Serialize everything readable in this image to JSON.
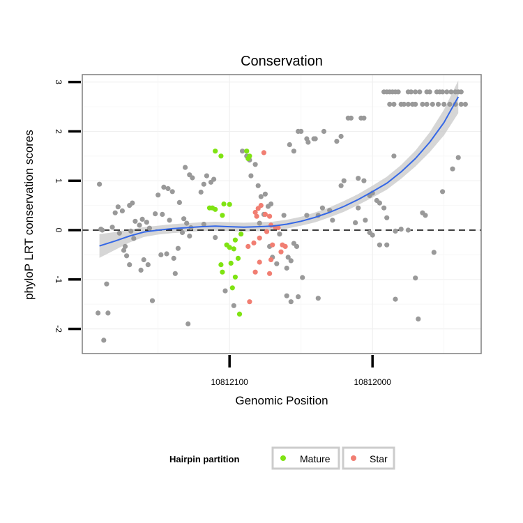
{
  "chart_data": {
    "type": "scatter",
    "title": "Conservation",
    "xlabel": "Genomic Position",
    "ylabel": "phyloP LRT conservation scores",
    "x_reversed": true,
    "xlim": [
      10812203,
      10811924
    ],
    "ylim": [
      -2.5,
      3.15
    ],
    "x_ticks": [
      {
        "value": 10812100,
        "label": "10812100"
      },
      {
        "value": 10812000,
        "label": "10812000"
      }
    ],
    "y_ticks": [
      {
        "value": -2,
        "label": "-2"
      },
      {
        "value": -1,
        "label": "-1"
      },
      {
        "value": 0,
        "label": "0"
      },
      {
        "value": 1,
        "label": "1"
      },
      {
        "value": 2,
        "label": "2"
      },
      {
        "value": 3,
        "label": "3"
      }
    ],
    "reference_line": {
      "y": 0,
      "style": "dashed"
    },
    "legend": {
      "title": "Hairpin partition",
      "placement": "bottom",
      "entries": [
        {
          "label": "Mature",
          "color": "#7FE312"
        },
        {
          "label": "Star",
          "color": "#F17E72"
        }
      ]
    },
    "colors": {
      "other": "#999999",
      "mature": "#7FE312",
      "star": "#F17E72",
      "smooth": "#3467E6",
      "band": "#C8C8C8"
    },
    "series": [
      {
        "name": "Other",
        "points": [
          [
            10812191,
            0.93
          ],
          [
            10812189,
            0.0
          ],
          [
            10812186,
            -1.09
          ],
          [
            10812188,
            -2.23
          ],
          [
            10812192,
            -1.68
          ],
          [
            10812185,
            -1.68
          ],
          [
            10812190,
            0.02
          ],
          [
            10812180,
            0.35
          ],
          [
            10812178,
            0.47
          ],
          [
            10812175,
            0.39
          ],
          [
            10812182,
            0.06
          ],
          [
            10812177,
            -0.06
          ],
          [
            10812173,
            -0.33
          ],
          [
            10812172,
            -0.52
          ],
          [
            10812174,
            -0.41
          ],
          [
            10812170,
            0.5
          ],
          [
            10812168,
            0.55
          ],
          [
            10812166,
            0.18
          ],
          [
            10812169,
            -0.02
          ],
          [
            10812167,
            -0.17
          ],
          [
            10812163,
            0.1
          ],
          [
            10812161,
            0.22
          ],
          [
            10812158,
            0.16
          ],
          [
            10812156,
            0.04
          ],
          [
            10812160,
            -0.6
          ],
          [
            10812170,
            -0.7
          ],
          [
            10812162,
            -0.81
          ],
          [
            10812157,
            -0.7
          ],
          [
            10812154,
            -1.43
          ],
          [
            10812150,
            0.71
          ],
          [
            10812146,
            0.87
          ],
          [
            10812143,
            0.84
          ],
          [
            10812140,
            0.78
          ],
          [
            10812152,
            0.33
          ],
          [
            10812147,
            0.32
          ],
          [
            10812142,
            0.2
          ],
          [
            10812148,
            -0.5
          ],
          [
            10812144,
            -0.48
          ],
          [
            10812139,
            -0.57
          ],
          [
            10812138,
            -0.88
          ],
          [
            10812129,
            -1.9
          ],
          [
            10812131,
            1.27
          ],
          [
            10812128,
            1.12
          ],
          [
            10812126,
            1.06
          ],
          [
            10812135,
            0.56
          ],
          [
            10812132,
            0.23
          ],
          [
            10812130,
            0.14
          ],
          [
            10812127,
            0.05
          ],
          [
            10812133,
            -0.05
          ],
          [
            10812128,
            -0.12
          ],
          [
            10812136,
            -0.37
          ],
          [
            10812118,
            0.93
          ],
          [
            10812116,
            1.1
          ],
          [
            10812113,
            0.97
          ],
          [
            10812111,
            1.03
          ],
          [
            10812120,
            0.77
          ],
          [
            10812118,
            0.12
          ],
          [
            10812110,
            -0.15
          ],
          [
            10812103,
            -1.23
          ],
          [
            10812097,
            -1.53
          ],
          [
            10812091,
            1.6
          ],
          [
            10812088,
            1.5
          ],
          [
            10812086,
            1.42
          ],
          [
            10812082,
            1.33
          ],
          [
            10812085,
            1.1
          ],
          [
            10812080,
            0.9
          ],
          [
            10812078,
            0.68
          ],
          [
            10812075,
            0.73
          ],
          [
            10812073,
            0.48
          ],
          [
            10812071,
            0.53
          ],
          [
            10812076,
            0.32
          ],
          [
            10812079,
            0.14
          ],
          [
            10812072,
            -0.33
          ],
          [
            10812070,
            -0.55
          ],
          [
            10812067,
            -0.68
          ],
          [
            10812060,
            -0.77
          ],
          [
            10812059,
            -0.55
          ],
          [
            10812057,
            -0.62
          ],
          [
            10812062,
            0.3
          ],
          [
            10812065,
            -0.08
          ],
          [
            10812055,
            -0.27
          ],
          [
            10812053,
            -0.33
          ],
          [
            10812049,
            -0.96
          ],
          [
            10812052,
            -1.35
          ],
          [
            10812057,
            -1.45
          ],
          [
            10812060,
            -1.33
          ],
          [
            10812058,
            1.73
          ],
          [
            10812055,
            1.6
          ],
          [
            10812052,
            2.0
          ],
          [
            10812050,
            2.0
          ],
          [
            10812046,
            1.85
          ],
          [
            10812045,
            1.78
          ],
          [
            10812041,
            1.85
          ],
          [
            10812040,
            1.85
          ],
          [
            10812034,
            2.0
          ],
          [
            10812025,
            1.8
          ],
          [
            10812022,
            1.9
          ],
          [
            10812017,
            2.27
          ],
          [
            10812015,
            2.27
          ],
          [
            10812008,
            2.27
          ],
          [
            10812006,
            2.27
          ],
          [
            10812046,
            0.3
          ],
          [
            10812038,
            0.3
          ],
          [
            10812035,
            0.45
          ],
          [
            10812030,
            0.4
          ],
          [
            10812028,
            0.2
          ],
          [
            10812022,
            0.9
          ],
          [
            10812020,
            1.0
          ],
          [
            10812010,
            1.05
          ],
          [
            10812006,
            1.0
          ],
          [
            10812002,
            0.7
          ],
          [
            10812000,
            0.75
          ],
          [
            10811997,
            0.6
          ],
          [
            10811995,
            0.55
          ],
          [
            10811992,
            0.45
          ],
          [
            10811990,
            0.25
          ],
          [
            10812038,
            -1.38
          ],
          [
            10812010,
            0.45
          ],
          [
            10812012,
            0.15
          ],
          [
            10812005,
            0.2
          ],
          [
            10812002,
            -0.05
          ],
          [
            10812000,
            -0.1
          ],
          [
            10811995,
            -0.3
          ],
          [
            10811990,
            -0.3
          ],
          [
            10811984,
            -0.02
          ],
          [
            10811980,
            0.02
          ],
          [
            10811975,
            0.0
          ],
          [
            10811970,
            -0.97
          ],
          [
            10811968,
            -1.8
          ],
          [
            10811984,
            -1.4
          ],
          [
            10811985,
            1.5
          ],
          [
            10811965,
            0.35
          ],
          [
            10811963,
            0.3
          ],
          [
            10811957,
            -0.45
          ],
          [
            10811951,
            0.78
          ],
          [
            10811944,
            1.24
          ],
          [
            10811940,
            1.47
          ],
          [
            10811992,
            2.8
          ],
          [
            10811990,
            2.8
          ],
          [
            10811988,
            2.8
          ],
          [
            10811986,
            2.8
          ],
          [
            10811984,
            2.8
          ],
          [
            10811982,
            2.8
          ],
          [
            10811975,
            2.8
          ],
          [
            10811973,
            2.8
          ],
          [
            10811970,
            2.8
          ],
          [
            10811967,
            2.8
          ],
          [
            10811962,
            2.8
          ],
          [
            10811960,
            2.8
          ],
          [
            10811955,
            2.8
          ],
          [
            10811953,
            2.8
          ],
          [
            10811951,
            2.8
          ],
          [
            10811948,
            2.8
          ],
          [
            10811945,
            2.8
          ],
          [
            10811942,
            2.8
          ],
          [
            10811940,
            2.8
          ],
          [
            10811938,
            2.8
          ],
          [
            10811988,
            2.55
          ],
          [
            10811985,
            2.55
          ],
          [
            10811980,
            2.55
          ],
          [
            10811978,
            2.55
          ],
          [
            10811975,
            2.55
          ],
          [
            10811972,
            2.55
          ],
          [
            10811970,
            2.55
          ],
          [
            10811965,
            2.55
          ],
          [
            10811962,
            2.55
          ],
          [
            10811958,
            2.55
          ],
          [
            10811954,
            2.55
          ],
          [
            10811950,
            2.55
          ],
          [
            10811946,
            2.55
          ],
          [
            10811942,
            2.55
          ],
          [
            10811938,
            2.55
          ],
          [
            10811935,
            2.55
          ]
        ]
      },
      {
        "name": "Mature",
        "points": [
          [
            10812110,
            1.6
          ],
          [
            10812106,
            1.5
          ],
          [
            10812088,
            1.6
          ],
          [
            10812086,
            1.5
          ],
          [
            10812087,
            1.45
          ],
          [
            10812114,
            0.45
          ],
          [
            10812112,
            0.45
          ],
          [
            10812110,
            0.42
          ],
          [
            10812104,
            0.53
          ],
          [
            10812100,
            0.52
          ],
          [
            10812105,
            0.3
          ],
          [
            10812102,
            -0.3
          ],
          [
            10812100,
            -0.35
          ],
          [
            10812097,
            -0.38
          ],
          [
            10812096,
            -0.2
          ],
          [
            10812092,
            -0.08
          ],
          [
            10812106,
            -0.7
          ],
          [
            10812105,
            -0.85
          ],
          [
            10812099,
            -0.67
          ],
          [
            10812094,
            -0.57
          ],
          [
            10812096,
            -0.95
          ],
          [
            10812098,
            -1.17
          ],
          [
            10812093,
            -1.7
          ]
        ]
      },
      {
        "name": "Star",
        "points": [
          [
            10812076,
            1.57
          ],
          [
            10812078,
            0.5
          ],
          [
            10812080,
            0.44
          ],
          [
            10812082,
            0.36
          ],
          [
            10812081,
            0.28
          ],
          [
            10812075,
            0.32
          ],
          [
            10812072,
            0.28
          ],
          [
            10812071,
            0.1
          ],
          [
            10812068,
            0.06
          ],
          [
            10812066,
            0.05
          ],
          [
            10812074,
            -0.03
          ],
          [
            10812079,
            -0.16
          ],
          [
            10812083,
            -0.26
          ],
          [
            10812087,
            -0.33
          ],
          [
            10812070,
            -0.3
          ],
          [
            10812063,
            -0.3
          ],
          [
            10812061,
            -0.33
          ],
          [
            10812064,
            -0.44
          ],
          [
            10812071,
            -0.6
          ],
          [
            10812079,
            -0.65
          ],
          [
            10812082,
            -0.85
          ],
          [
            10812072,
            -0.88
          ],
          [
            10812086,
            -1.45
          ]
        ]
      }
    ],
    "smooth": {
      "x": [
        10812191,
        10812180,
        10812170,
        10812160,
        10812150,
        10812140,
        10812130,
        10812120,
        10812110,
        10812100,
        10812090,
        10812080,
        10812070,
        10812060,
        10812050,
        10812040,
        10812030,
        10812020,
        10812010,
        10812000,
        10811990,
        10811980,
        10811970,
        10811960,
        10811950,
        10811940
      ],
      "y": [
        -0.32,
        -0.22,
        -0.12,
        -0.04,
        0.0,
        0.03,
        0.05,
        0.07,
        0.08,
        0.07,
        0.06,
        0.07,
        0.08,
        0.12,
        0.18,
        0.26,
        0.36,
        0.48,
        0.62,
        0.78,
        0.95,
        1.18,
        1.45,
        1.78,
        2.18,
        2.7
      ],
      "band": [
        0.24,
        0.18,
        0.13,
        0.1,
        0.09,
        0.09,
        0.09,
        0.09,
        0.09,
        0.09,
        0.09,
        0.09,
        0.09,
        0.09,
        0.09,
        0.1,
        0.1,
        0.11,
        0.11,
        0.12,
        0.13,
        0.14,
        0.16,
        0.2,
        0.26,
        0.33
      ]
    }
  }
}
